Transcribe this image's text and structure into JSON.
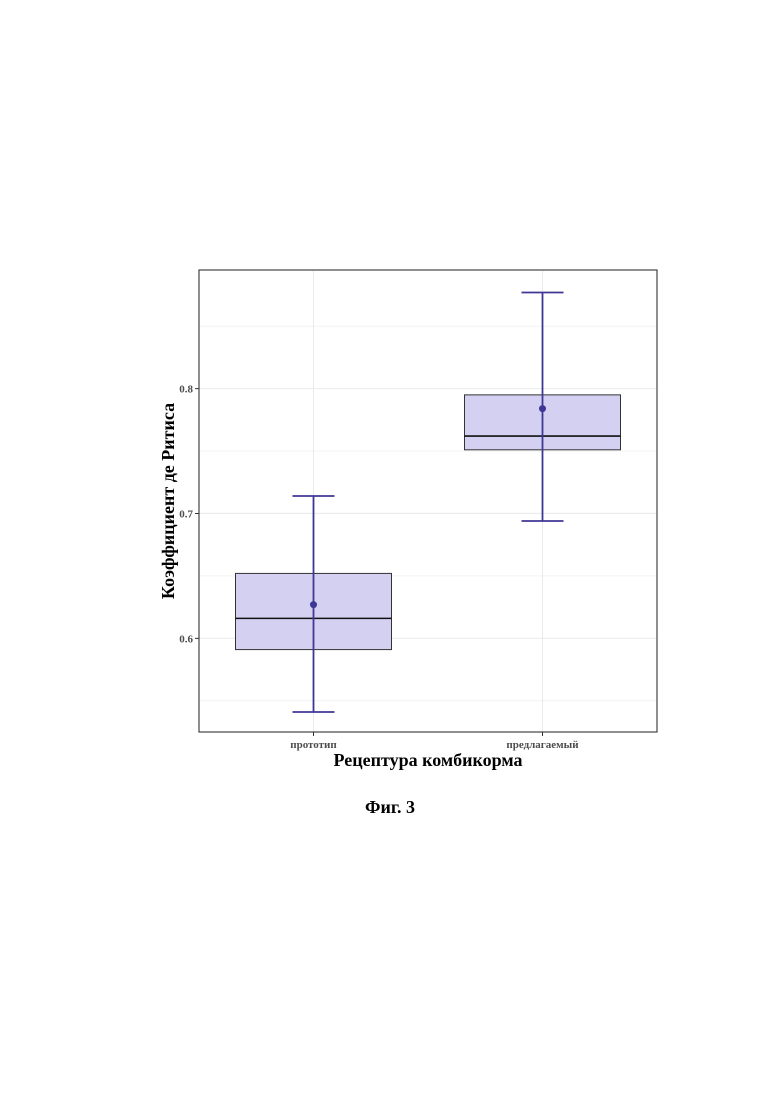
{
  "chart_data": {
    "type": "box",
    "xlabel": "Рецептура комбикорма",
    "ylabel": "Коэффициент де Ритиса",
    "ylim": [
      0.525,
      0.895
    ],
    "yticks": [
      0.6,
      0.7,
      0.8
    ],
    "ytick_labels": [
      "0.6",
      "0.7",
      "0.8"
    ],
    "grid": true,
    "categories": [
      "прототип",
      "предлагаемый"
    ],
    "boxes": [
      {
        "category": "прототип",
        "whisker_low": 0.541,
        "q1": 0.591,
        "median": 0.616,
        "q3": 0.652,
        "whisker_high": 0.714,
        "mean": 0.627
      },
      {
        "category": "предлагаемый",
        "whisker_low": 0.694,
        "q1": 0.751,
        "median": 0.762,
        "q3": 0.795,
        "whisker_high": 0.877,
        "mean": 0.784
      }
    ],
    "colors": {
      "fill": "#d3d0f1",
      "box_stroke": "#333333",
      "accent": "#3f3796",
      "grid": "#ebebeb",
      "panel_border": "#333333"
    }
  },
  "caption": "Фиг. 3"
}
